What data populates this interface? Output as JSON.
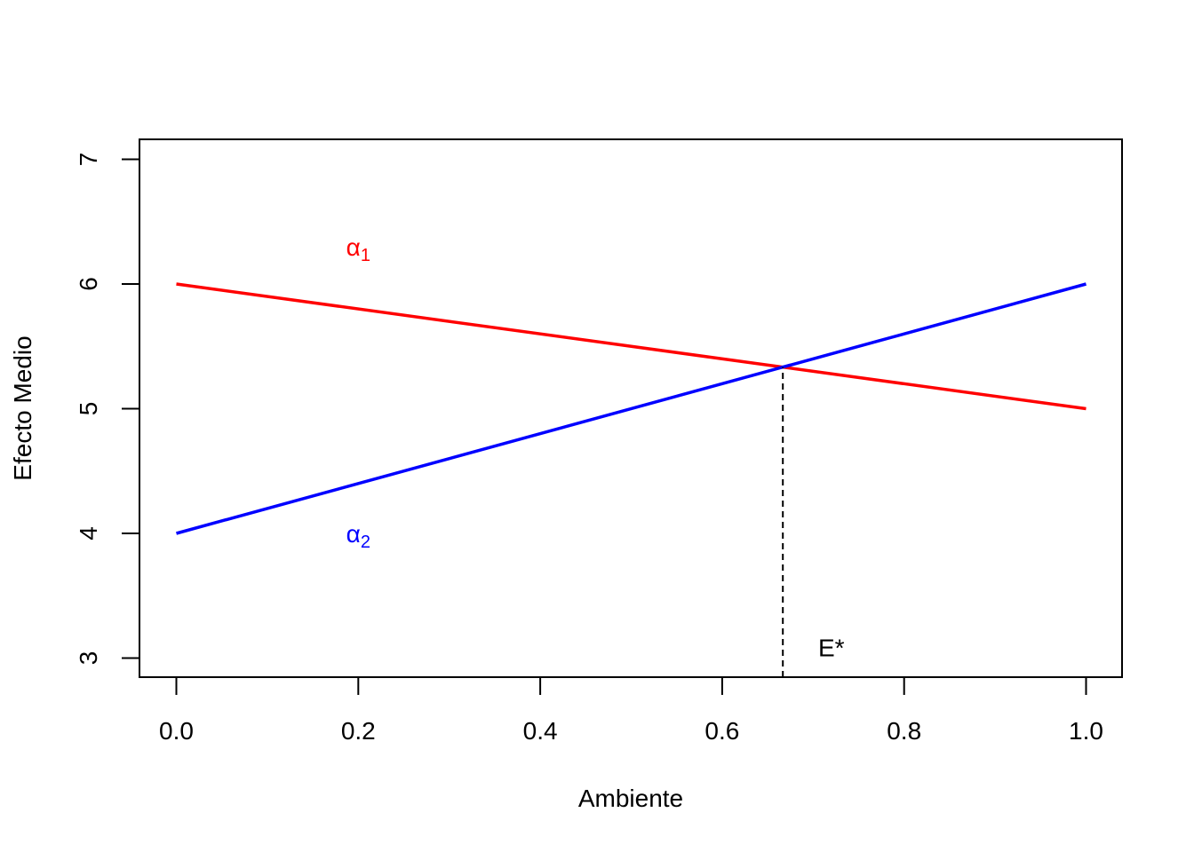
{
  "chart_data": {
    "type": "line",
    "xlabel": "Ambiente",
    "ylabel": "Efecto Medio",
    "xlim": [
      0.0,
      1.0
    ],
    "ylim": [
      3,
      7
    ],
    "x_ticks": [
      "0.0",
      "0.2",
      "0.4",
      "0.6",
      "0.8",
      "1.0"
    ],
    "y_ticks": [
      "3",
      "4",
      "5",
      "6",
      "7"
    ],
    "grid": false,
    "series": [
      {
        "label_main": "α",
        "label_sub": "1",
        "color": "#ff0000",
        "x": [
          0.0,
          1.0
        ],
        "y": [
          6,
          5
        ],
        "label_pos": [
          0.2,
          6.3
        ]
      },
      {
        "label_main": "α",
        "label_sub": "2",
        "color": "#0000ff",
        "x": [
          0.0,
          1.0
        ],
        "y": [
          4,
          6
        ],
        "label_pos": [
          0.2,
          4.0
        ]
      }
    ],
    "vline": {
      "x": 0.6667,
      "y_from": 3,
      "y_to": 5.333,
      "style": "dashed",
      "color": "#000000"
    },
    "annotations": [
      {
        "text": "E*",
        "x": 0.72,
        "y": 3.05
      }
    ]
  }
}
